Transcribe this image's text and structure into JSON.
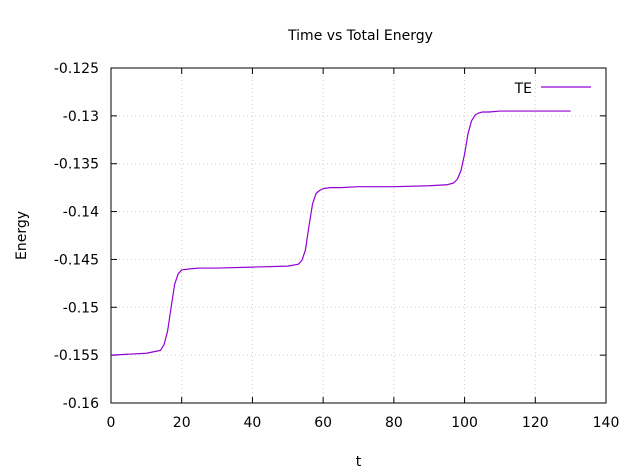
{
  "chart_data": {
    "type": "line",
    "title": "Time vs Total Energy",
    "xlabel": "t",
    "ylabel": "Energy",
    "xlim": [
      0,
      140
    ],
    "ylim": [
      -0.16,
      -0.125
    ],
    "xticks": [
      "0",
      "20",
      "40",
      "60",
      "80",
      "100",
      "120",
      "140"
    ],
    "yticks": [
      "-0.16",
      "-0.155",
      "-0.15",
      "-0.145",
      "-0.14",
      "-0.135",
      "-0.13",
      "-0.125"
    ],
    "grid": true,
    "legend_position": "top-right",
    "series": [
      {
        "name": "TE",
        "color": "#9400d3",
        "x": [
          0,
          5,
          10,
          14,
          15,
          16,
          17,
          18,
          19,
          20,
          22,
          25,
          30,
          40,
          50,
          53,
          54,
          55,
          56,
          57,
          58,
          59,
          60,
          62,
          65,
          70,
          80,
          90,
          95,
          97,
          98,
          99,
          100,
          101,
          102,
          103,
          104,
          105,
          107,
          110,
          120,
          130
        ],
        "y": [
          -0.155,
          -0.1549,
          -0.1548,
          -0.1545,
          -0.1539,
          -0.1525,
          -0.15,
          -0.1476,
          -0.1465,
          -0.1461,
          -0.146,
          -0.1459,
          -0.1459,
          -0.1458,
          -0.1457,
          -0.1455,
          -0.1451,
          -0.144,
          -0.1415,
          -0.1392,
          -0.1381,
          -0.1378,
          -0.1376,
          -0.1375,
          -0.1375,
          -0.1374,
          -0.1374,
          -0.1373,
          -0.1372,
          -0.137,
          -0.1366,
          -0.1357,
          -0.134,
          -0.1318,
          -0.1305,
          -0.1299,
          -0.1297,
          -0.1296,
          -0.1296,
          -0.1295,
          -0.1295,
          -0.1295
        ]
      }
    ]
  }
}
